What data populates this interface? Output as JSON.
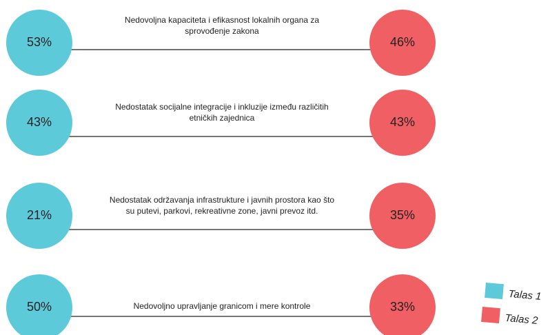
{
  "rows": [
    {
      "label": [
        "Nedovoljna kapaciteta i efikasnost lokalnih organa za",
        "sprovođenje zakona"
      ],
      "talas_1": "53%",
      "talas_2": "46%"
    },
    {
      "label": [
        "Nedostatak socijalne integracije i inkluzije između različitih",
        "etničkih zajednica"
      ],
      "talas_1": "43%",
      "talas_2": "43%"
    },
    {
      "label": [
        "Nedostatak održavanja infrastrukture i javnih prostora kao što",
        "su putevi, parkovi, rekreativne zone, javni prevoz itd."
      ],
      "talas_1": "21%",
      "talas_2": "35%"
    },
    {
      "label": [
        "Nedovoljno upravljanje granicom i mere kontrole"
      ],
      "talas_1": "50%",
      "talas_2": "33%"
    }
  ],
  "legend": [
    {
      "name": "Talas 1",
      "color": "#5ccad9"
    },
    {
      "name": "Talas 2",
      "color": "#f05f64"
    }
  ]
}
